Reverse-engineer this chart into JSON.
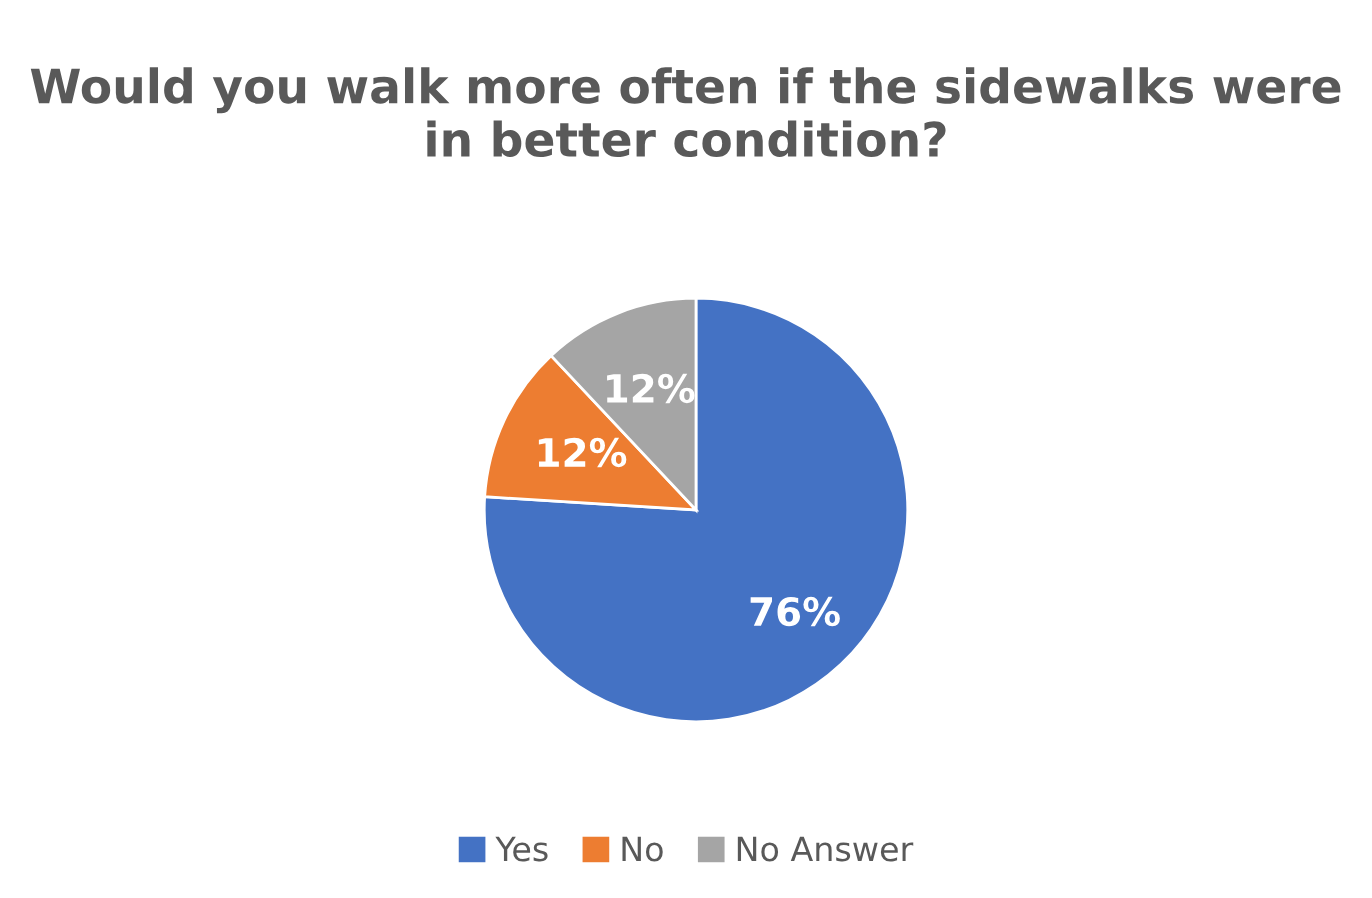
{
  "chart_data": {
    "type": "pie",
    "title": "Would you walk more often if the sidewalks were in better condition?",
    "categories": [
      "Yes",
      "No",
      "No Answer"
    ],
    "values": [
      76,
      12,
      12
    ],
    "colors": [
      "#4472c4",
      "#ed7d31",
      "#a5a5a5"
    ],
    "value_labels": [
      "76%",
      "12%",
      "12%"
    ],
    "legend": "bottom"
  }
}
